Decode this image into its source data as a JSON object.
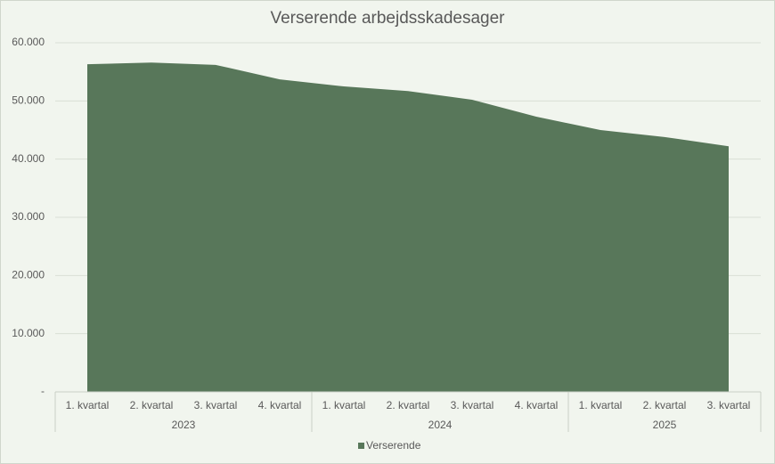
{
  "chart_data": {
    "type": "area",
    "title": "Verserende arbejdsskadesager",
    "category_groups": [
      {
        "name": "2023",
        "categories": [
          "1. kvartal",
          "2. kvartal",
          "3. kvartal",
          "4. kvartal"
        ]
      },
      {
        "name": "2024",
        "categories": [
          "1. kvartal",
          "2. kvartal",
          "3. kvartal",
          "4. kvartal"
        ]
      },
      {
        "name": "2025",
        "categories": [
          "1. kvartal",
          "2. kvartal",
          "3. kvartal"
        ]
      }
    ],
    "series": [
      {
        "name": "Verserende",
        "color": "#58775a",
        "values": [
          56300,
          56600,
          56200,
          53700,
          52500,
          51700,
          50200,
          47300,
          45000,
          43800,
          42200
        ]
      }
    ],
    "ylim": [
      0,
      60000
    ],
    "yticks": [
      {
        "value": 0,
        "label": "-"
      },
      {
        "value": 10000,
        "label": "10.000"
      },
      {
        "value": 20000,
        "label": "20.000"
      },
      {
        "value": 30000,
        "label": "30.000"
      },
      {
        "value": 40000,
        "label": "40.000"
      },
      {
        "value": 50000,
        "label": "50.000"
      },
      {
        "value": 60000,
        "label": "60.000"
      }
    ],
    "grid": true,
    "legend": "bottom"
  }
}
